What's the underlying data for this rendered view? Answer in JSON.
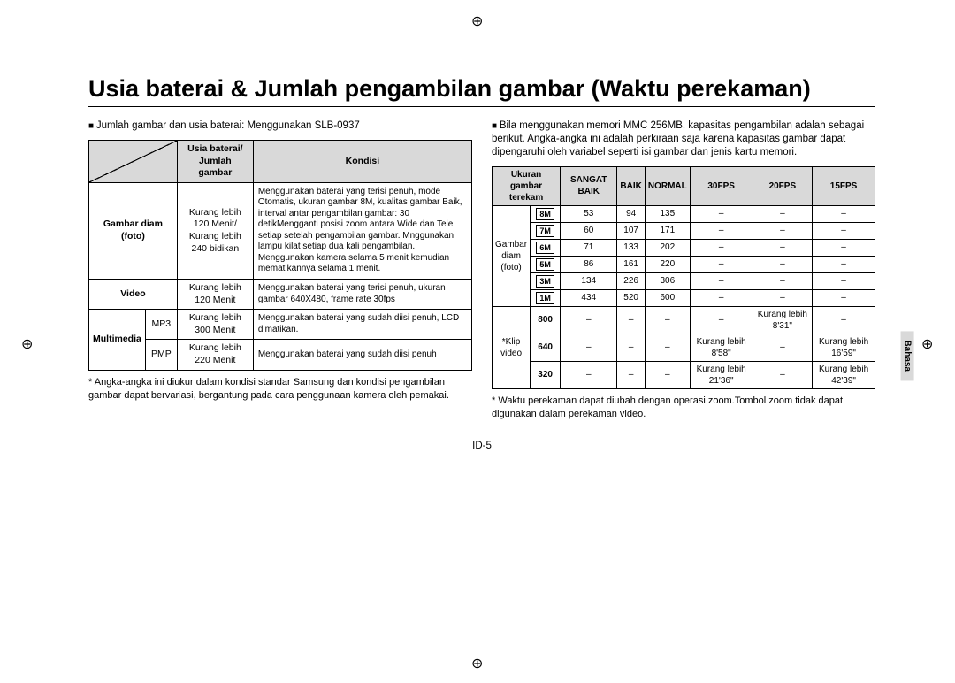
{
  "title": "Usia baterai & Jumlah pengambilan gambar (Waktu perekaman)",
  "sidetab": "Bahasa",
  "pagefoot": "ID-5",
  "left": {
    "lead": "Jumlah gambar dan usia baterai: Menggunakan SLB-0937",
    "header_usia": "Usia baterai/ Jumlah gambar",
    "header_kondisi": "Kondisi",
    "rows": [
      {
        "cat": "Gambar diam (foto)",
        "sub": "",
        "val": "Kurang lebih 120 Menit/ Kurang lebih 240 bidikan",
        "cond": "Menggunakan baterai yang terisi penuh, mode Otomatis, ukuran gambar 8M, kualitas gambar Baik, interval antar pengambilan gambar: 30 detikMengganti posisi zoom antara Wide dan Tele setiap setelah pengambilan gambar. Mnggunakan lampu kilat setiap dua kali pengambilan. Menggunakan kamera selama 5 menit kemudian mematikannya selama 1 menit."
      },
      {
        "cat": "Video",
        "sub": "",
        "val": "Kurang lebih 120 Menit",
        "cond": "Menggunakan baterai yang terisi penuh, ukuran gambar 640X480, frame rate 30fps"
      },
      {
        "cat": "Multimedia",
        "sub": "MP3",
        "val": "Kurang lebih 300 Menit",
        "cond": "Menggunakan baterai yang sudah diisi penuh, LCD dimatikan."
      },
      {
        "cat": "",
        "sub": "PMP",
        "val": "Kurang lebih 220 Menit",
        "cond": "Menggunakan baterai yang sudah diisi penuh"
      }
    ],
    "note": "Angka-angka ini diukur dalam kondisi standar Samsung dan kondisi pengambilan gambar dapat bervariasi, bergantung pada cara penggunaan kamera oleh pemakai."
  },
  "right": {
    "lead": "Bila menggunakan memori MMC 256MB, kapasitas pengambilan adalah sebagai berikut. Angka-angka ini adalah perkiraan saja karena kapasitas gambar dapat dipengaruhi oleh variabel seperti isi gambar dan jenis kartu memori.",
    "headers": [
      "Ukuran gambar terekam",
      "SANGAT BAIK",
      "BAIK",
      "NORMAL",
      "30FPS",
      "20FPS",
      "15FPS"
    ],
    "foto_cat": "Gambar diam (foto)",
    "foto_rows": [
      {
        "icon": "8M",
        "c": [
          "53",
          "94",
          "135",
          "–",
          "–",
          "–"
        ]
      },
      {
        "icon": "7M",
        "c": [
          "60",
          "107",
          "171",
          "–",
          "–",
          "–"
        ]
      },
      {
        "icon": "6M",
        "c": [
          "71",
          "133",
          "202",
          "–",
          "–",
          "–"
        ]
      },
      {
        "icon": "5M",
        "c": [
          "86",
          "161",
          "220",
          "–",
          "–",
          "–"
        ]
      },
      {
        "icon": "3M",
        "c": [
          "134",
          "226",
          "306",
          "–",
          "–",
          "–"
        ]
      },
      {
        "icon": "1M",
        "c": [
          "434",
          "520",
          "600",
          "–",
          "–",
          "–"
        ]
      }
    ],
    "video_cat": "*Klip video",
    "video_rows": [
      {
        "size": "800",
        "c": [
          "–",
          "–",
          "–",
          "–",
          "Kurang lebih 8'31\"",
          "–"
        ]
      },
      {
        "size": "640",
        "c": [
          "–",
          "–",
          "–",
          "Kurang lebih 8'58\"",
          "–",
          "Kurang lebih 16'59\""
        ]
      },
      {
        "size": "320",
        "c": [
          "–",
          "–",
          "–",
          "Kurang lebih 21'36\"",
          "–",
          "Kurang lebih 42'39\""
        ]
      }
    ],
    "note": "Waktu perekaman dapat diubah dengan operasi zoom.Tombol zoom tidak dapat digunakan dalam perekaman video."
  }
}
